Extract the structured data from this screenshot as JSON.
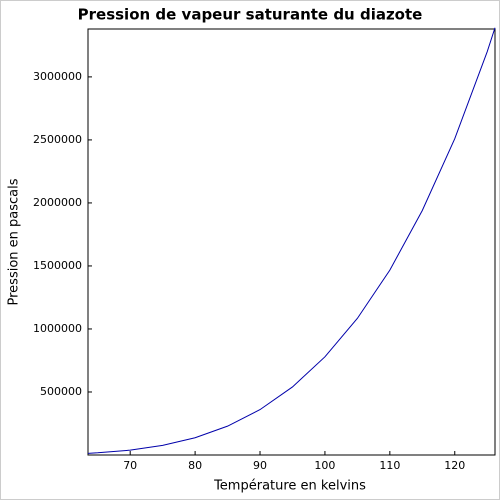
{
  "chart_data": {
    "type": "line",
    "title": "Pression de vapeur saturante du diazote",
    "x_label": "Température en kelvins",
    "y_label": "Pression en pascals",
    "x": [
      63.5,
      65,
      70,
      75,
      80,
      85,
      90,
      95,
      100,
      105,
      110,
      115,
      120,
      125,
      126.2
    ],
    "series": [
      {
        "name": "diazote",
        "color": "#0000aa",
        "values": [
          13000,
          17400,
          38500,
          76000,
          137000,
          229000,
          360000,
          540000,
          779000,
          1084000,
          1467000,
          1940000,
          2510000,
          3200000,
          3390000
        ]
      }
    ],
    "xlim": [
      63.5,
      126.2
    ],
    "ylim": [
      0,
      3380000
    ],
    "xticks": [
      70,
      80,
      90,
      100,
      110,
      120
    ],
    "yticks": [
      500000,
      1000000,
      1500000,
      2000000,
      2500000,
      3000000
    ],
    "grid": false
  }
}
